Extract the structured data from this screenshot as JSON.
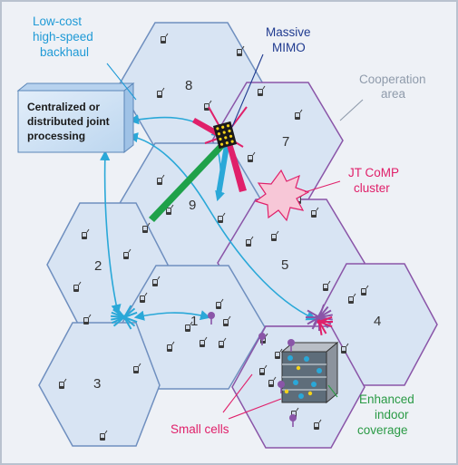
{
  "colors": {
    "background": "#eef1f6",
    "cell_fill": "#d8e4f3",
    "cell_border_blue": "#6f8fbf",
    "cell_border_purple": "#8a55a8",
    "backhaul_cyan": "#2aa8d8",
    "label_cyan": "#1f9ad6",
    "label_gray": "#8f9bab",
    "label_magenta": "#e0206a",
    "label_navy": "#1f3a8f",
    "label_green": "#2a9a45",
    "box_fill": "#cfe3f6"
  },
  "labels": {
    "backhaul": [
      "Low-cost",
      "high-speed",
      "backhaul"
    ],
    "massive_mimo": [
      "Massive",
      "MIMO"
    ],
    "cooperation": [
      "Cooperation",
      "area"
    ],
    "processing": [
      "Centralized or",
      "distributed joint",
      "processing"
    ],
    "jt_comp": [
      "JT CoMP",
      "cluster"
    ],
    "indoor": [
      "Enhanced",
      "indoor",
      "coverage"
    ],
    "small_cells": "Small cells"
  },
  "cells": [
    {
      "id": "cell-1",
      "label": "1"
    },
    {
      "id": "cell-2",
      "label": "2"
    },
    {
      "id": "cell-3",
      "label": "3"
    },
    {
      "id": "cell-4",
      "label": "4"
    },
    {
      "id": "cell-5",
      "label": "5"
    },
    {
      "id": "cell-6",
      "label": ""
    },
    {
      "id": "cell-7",
      "label": "7"
    },
    {
      "id": "cell-8",
      "label": "8"
    },
    {
      "id": "cell-9",
      "label": "9"
    }
  ],
  "icons": {
    "user_device": "phone-icon",
    "antenna": "antenna-icon",
    "small_cell": "small-cell-icon",
    "building": "building-icon"
  }
}
